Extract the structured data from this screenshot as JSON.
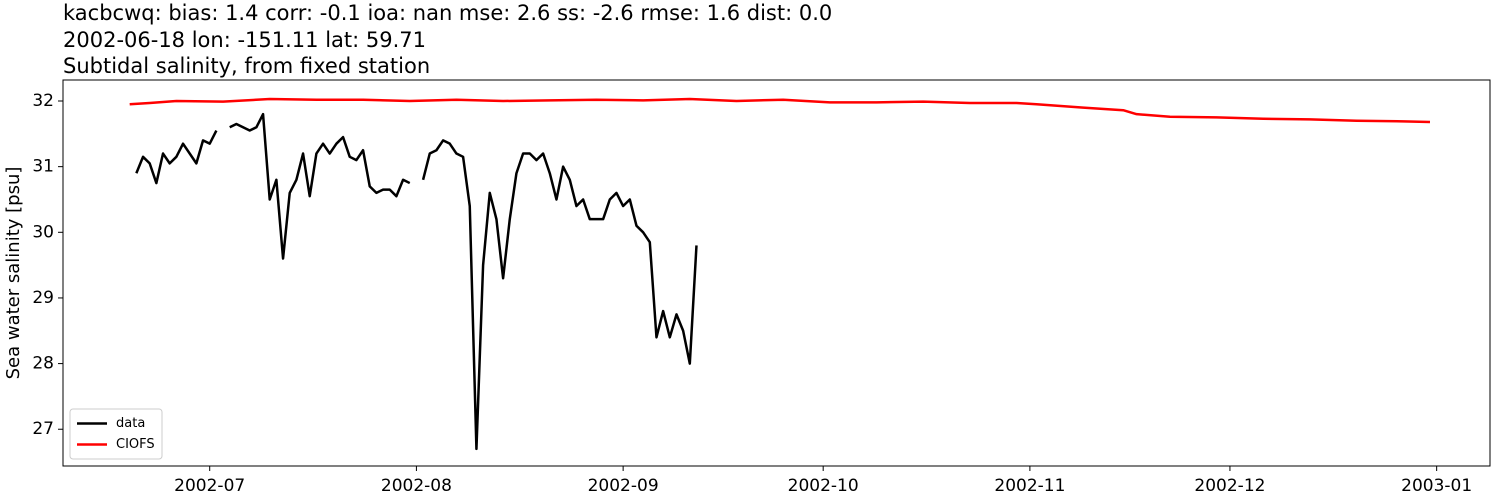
{
  "chart_data": {
    "type": "line",
    "title": "kacbcwq: bias: 1.4  corr: -0.1  ioa: nan  mse: 2.6  ss: -2.6  rmse: 1.6  dist: 0.0",
    "subtitle": "2002-06-18 lon: -151.11 lat: 59.71",
    "subtitle2": "Subtidal salinity, from fixed station",
    "y_label": "Sea water salinity [psu]",
    "xlim": [
      "2002-06-09",
      "2003-01-09"
    ],
    "xticks": [
      "2002-07",
      "2002-08",
      "2002-09",
      "2002-10",
      "2002-11",
      "2002-12",
      "2003-01"
    ],
    "ylim": [
      26.44,
      32.32
    ],
    "yticks": [
      27,
      28,
      29,
      30,
      31,
      32
    ],
    "legend": "lower left",
    "series": [
      {
        "name": "data",
        "color": "#000000",
        "x": [
          "2002-06-20",
          "2002-06-21",
          "2002-06-22",
          "2002-06-23",
          "2002-06-24",
          "2002-06-25",
          "2002-06-26",
          "2002-06-27",
          "2002-06-29",
          "2002-06-30",
          "2002-07-01",
          "2002-07-02",
          "2002-07-03",
          "2002-07-04",
          "2002-07-05",
          "2002-07-06",
          "2002-07-07",
          "2002-07-08",
          "2002-07-09",
          "2002-07-10",
          "2002-07-11",
          "2002-07-12",
          "2002-07-13",
          "2002-07-14",
          "2002-07-15",
          "2002-07-16",
          "2002-07-17",
          "2002-07-18",
          "2002-07-19",
          "2002-07-20",
          "2002-07-21",
          "2002-07-22",
          "2002-07-23",
          "2002-07-24",
          "2002-07-25",
          "2002-07-26",
          "2002-07-27",
          "2002-07-28",
          "2002-07-29",
          "2002-07-30",
          "2002-07-31",
          "2002-08-01",
          "2002-08-02",
          "2002-08-03",
          "2002-08-04",
          "2002-08-05",
          "2002-08-06",
          "2002-08-07",
          "2002-08-08",
          "2002-08-09",
          "2002-08-10",
          "2002-08-11",
          "2002-08-12",
          "2002-08-13",
          "2002-08-14",
          "2002-08-15",
          "2002-08-16",
          "2002-08-17",
          "2002-08-18",
          "2002-08-19",
          "2002-08-20",
          "2002-08-21",
          "2002-08-22",
          "2002-08-23",
          "2002-08-24",
          "2002-08-25",
          "2002-08-26",
          "2002-08-27",
          "2002-08-28",
          "2002-08-29",
          "2002-08-30",
          "2002-08-31",
          "2002-09-01",
          "2002-09-02",
          "2002-09-03",
          "2002-09-04",
          "2002-09-05",
          "2002-09-06",
          "2002-09-07",
          "2002-09-08",
          "2002-09-09",
          "2002-09-10",
          "2002-09-11",
          "2002-09-12"
        ],
        "values": [
          30.9,
          31.15,
          31.05,
          30.75,
          31.2,
          31.05,
          31.15,
          31.35,
          31.05,
          31.4,
          31.35,
          31.55,
          null,
          31.6,
          31.65,
          31.6,
          31.55,
          31.6,
          31.8,
          30.5,
          30.8,
          29.6,
          30.6,
          30.8,
          31.2,
          30.55,
          31.2,
          31.35,
          31.2,
          31.35,
          31.45,
          31.15,
          31.1,
          31.25,
          30.7,
          30.6,
          30.65,
          30.65,
          30.55,
          30.8,
          30.75,
          null,
          30.8,
          31.2,
          31.25,
          31.4,
          31.35,
          31.2,
          31.15,
          30.4,
          26.7,
          29.5,
          30.6,
          30.2,
          29.3,
          30.2,
          30.9,
          31.2,
          31.2,
          31.1,
          31.2,
          30.9,
          30.5,
          31.0,
          30.8,
          30.4,
          30.5,
          30.2,
          30.2,
          30.2,
          30.5,
          30.6,
          30.4,
          30.5,
          30.1,
          30.0,
          29.85,
          28.4,
          28.8,
          28.4,
          28.75,
          28.5,
          28.0,
          29.8
        ]
      },
      {
        "name": "CIOFS",
        "color": "#ff0000",
        "x": [
          "2002-06-19",
          "2002-06-22",
          "2002-06-26",
          "2002-07-03",
          "2002-07-10",
          "2002-07-17",
          "2002-07-24",
          "2002-07-31",
          "2002-08-07",
          "2002-08-14",
          "2002-08-21",
          "2002-08-28",
          "2002-09-04",
          "2002-09-11",
          "2002-09-18",
          "2002-09-25",
          "2002-10-02",
          "2002-10-09",
          "2002-10-16",
          "2002-10-23",
          "2002-10-30",
          "2002-11-02",
          "2002-11-09",
          "2002-11-15",
          "2002-11-17",
          "2002-11-22",
          "2002-11-29",
          "2002-12-06",
          "2002-12-13",
          "2002-12-20",
          "2002-12-27",
          "2002-12-31"
        ],
        "values": [
          31.95,
          31.97,
          32.0,
          31.99,
          32.03,
          32.02,
          32.02,
          32.0,
          32.02,
          32.0,
          32.01,
          32.02,
          32.01,
          32.03,
          32.0,
          32.02,
          31.98,
          31.98,
          31.99,
          31.97,
          31.97,
          31.95,
          31.9,
          31.86,
          31.8,
          31.76,
          31.75,
          31.73,
          31.72,
          31.7,
          31.69,
          31.68
        ]
      }
    ]
  }
}
